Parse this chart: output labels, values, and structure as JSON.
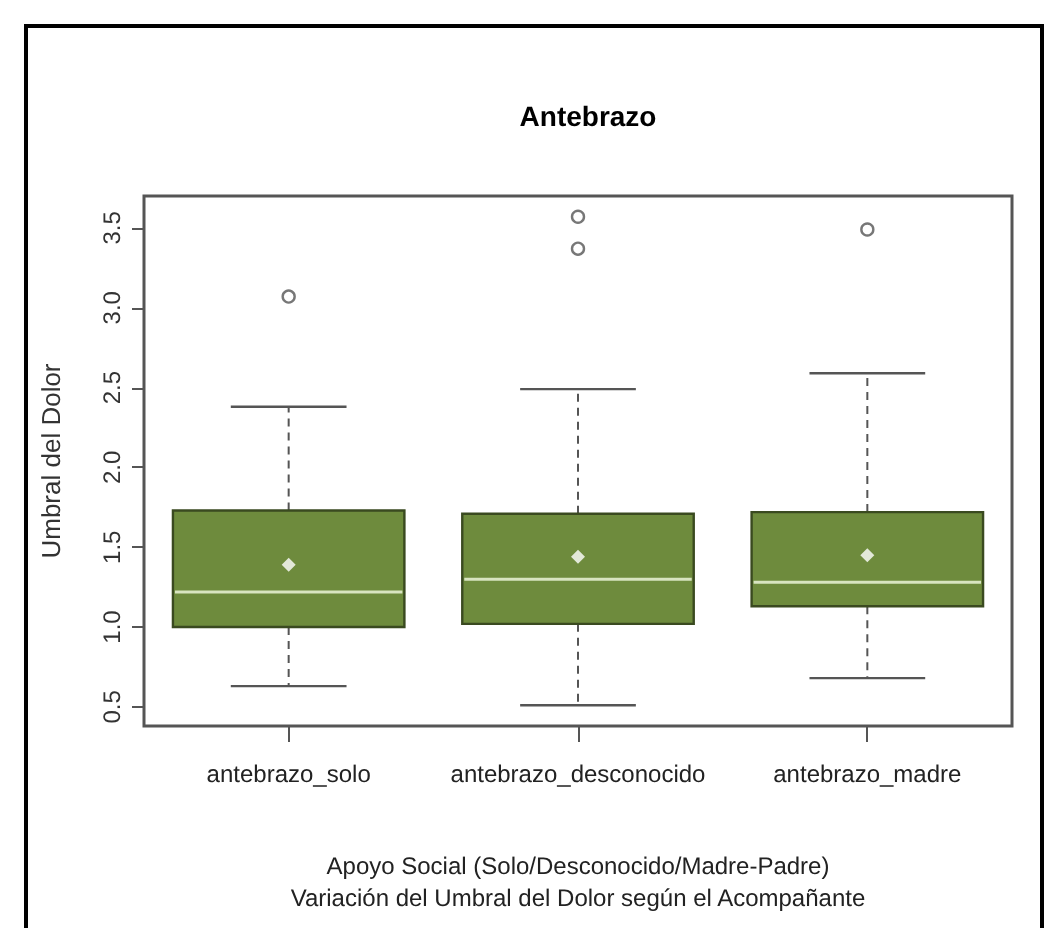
{
  "chart_data": {
    "type": "box",
    "title": "Antebrazo",
    "xlabel": "Apoyo Social (Solo/Desconocido/Madre-Padre)\nVariación del Umbral del Dolor según el Acompañante",
    "ylabel": "Umbral del Dolor",
    "categories": [
      "antebrazo_solo",
      "antebrazo_desconocido",
      "antebrazo_madre"
    ],
    "color": "#6e8b3d",
    "boxes": [
      {
        "low": 0.63,
        "q1": 1.0,
        "median": 1.22,
        "q3": 1.73,
        "high": 2.38,
        "mean": 1.39,
        "outliers": [
          3.07
        ]
      },
      {
        "low": 0.51,
        "q1": 1.02,
        "median": 1.3,
        "q3": 1.71,
        "high": 2.49,
        "mean": 1.44,
        "outliers": [
          3.57,
          3.37
        ]
      },
      {
        "low": 0.68,
        "q1": 1.13,
        "median": 1.28,
        "q3": 1.72,
        "high": 2.59,
        "mean": 1.45,
        "outliers": [
          3.49
        ]
      }
    ],
    "ylim": [
      0.38,
      3.7
    ],
    "yticks": [
      0.5,
      {
        "value": 1,
        "label": "1.0"
      },
      1.5,
      {
        "value": 2,
        "label": "2.0"
      },
      2.5,
      {
        "value": 3,
        "label": "3.0"
      },
      3.5
    ],
    "grid": false,
    "legend": false
  }
}
